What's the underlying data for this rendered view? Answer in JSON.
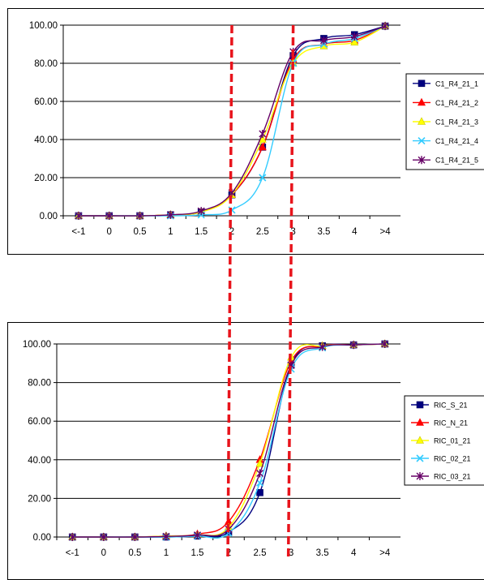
{
  "chart_data": [
    {
      "type": "line",
      "categories": [
        "<-1",
        "0",
        "0.5",
        "1",
        "1.5",
        "2",
        "2.5",
        "3",
        "3.5",
        "4",
        ">4"
      ],
      "y_ticks": [
        "0.00",
        "20.00",
        "40.00",
        "60.00",
        "80.00",
        "100.00"
      ],
      "ylim": [
        0,
        100
      ],
      "grid": "horizontal",
      "legend_position": "right",
      "series": [
        {
          "name": "C1_R4_21_1",
          "color": "#000080",
          "marker": "square",
          "values": [
            0,
            0,
            0,
            0.5,
            2,
            11,
            36,
            84,
            93,
            95,
            99.5
          ]
        },
        {
          "name": "C1_R4_21_2",
          "color": "#ff0000",
          "marker": "triangle",
          "values": [
            0,
            0,
            0,
            0.5,
            2,
            11,
            36,
            82,
            90,
            92,
            99.5
          ]
        },
        {
          "name": "C1_R4_21_3",
          "color": "#ffff00",
          "marker": "triangle",
          "values": [
            0,
            0,
            0,
            0.5,
            2,
            11,
            40,
            80,
            89,
            91,
            99.5
          ]
        },
        {
          "name": "C1_R4_21_4",
          "color": "#33ccff",
          "marker": "cross",
          "values": [
            0,
            0,
            0,
            0,
            0.5,
            3,
            20,
            80,
            90,
            93,
            99.5
          ]
        },
        {
          "name": "C1_R4_21_5",
          "color": "#660066",
          "marker": "star",
          "values": [
            0,
            0,
            0,
            0.5,
            2.5,
            12,
            43,
            86,
            92,
            94,
            99.5
          ]
        }
      ]
    },
    {
      "type": "line",
      "categories": [
        "<-1",
        "0",
        "0.5",
        "1",
        "1.5",
        "2",
        "2.5",
        "3",
        "3.5",
        "4",
        ">4"
      ],
      "y_ticks": [
        "0.00",
        "20.00",
        "40.00",
        "60.00",
        "80.00",
        "100.00"
      ],
      "ylim": [
        0,
        100
      ],
      "grid": "horizontal",
      "legend_position": "right",
      "series": [
        {
          "name": "RIC_S_21",
          "color": "#000080",
          "marker": "square",
          "values": [
            0,
            0,
            0,
            0,
            0.5,
            2.5,
            23,
            89,
            99,
            99.5,
            100
          ]
        },
        {
          "name": "RIC_N_21",
          "color": "#ff0000",
          "marker": "triangle",
          "values": [
            0,
            0,
            0,
            0.5,
            1.5,
            8,
            40,
            91,
            99,
            99.5,
            100
          ]
        },
        {
          "name": "RIC_01_21",
          "color": "#ffff00",
          "marker": "triangle",
          "values": [
            0,
            0,
            0,
            0.5,
            1,
            5,
            38,
            93,
            99,
            99.5,
            100
          ]
        },
        {
          "name": "RIC_02_21",
          "color": "#33ccff",
          "marker": "cross",
          "values": [
            0,
            0,
            0,
            0,
            0.5,
            2,
            28,
            87,
            98,
            99.5,
            100
          ]
        },
        {
          "name": "RIC_03_21",
          "color": "#660066",
          "marker": "star",
          "values": [
            0,
            0,
            0,
            0.3,
            1,
            4,
            33,
            89,
            98.5,
            99.5,
            100
          ]
        }
      ]
    }
  ],
  "reference_lines": {
    "color": "#e8141c",
    "style": "dashed",
    "at_categories": [
      "2",
      "3"
    ]
  }
}
